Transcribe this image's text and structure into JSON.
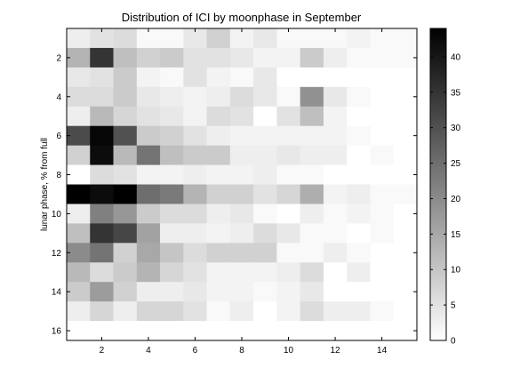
{
  "chart_data": {
    "type": "heatmap",
    "title": "Distribution of ICI by moonphase in September",
    "xlabel": "",
    "ylabel": "lunar phase, % from full",
    "x_range": [
      0.5,
      15.5
    ],
    "y_range": [
      0.5,
      16.5
    ],
    "x_ticks": [
      2,
      4,
      6,
      8,
      10,
      12,
      14
    ],
    "y_ticks": [
      2,
      4,
      6,
      8,
      10,
      12,
      14,
      16
    ],
    "colormap": "gray (reversed: 0 = white, 44 = black)",
    "colorbar": {
      "min": 0,
      "max": 44,
      "ticks": [
        0,
        5,
        10,
        15,
        20,
        25,
        30,
        35,
        40
      ]
    },
    "rows": [
      1,
      2,
      3,
      4,
      5,
      6,
      7,
      8,
      9,
      10,
      11,
      12,
      13,
      14,
      15,
      16
    ],
    "cols": [
      1,
      2,
      3,
      4,
      5,
      6,
      7,
      8,
      9,
      10,
      11,
      12,
      13,
      14,
      15
    ],
    "values": [
      [
        3,
        5,
        6,
        1,
        1,
        4,
        8,
        2,
        4,
        1,
        1,
        1,
        2,
        1,
        1
      ],
      [
        13,
        35,
        11,
        8,
        9,
        5,
        5,
        4,
        2,
        2,
        9,
        3,
        1,
        1,
        1
      ],
      [
        4,
        5,
        9,
        2,
        1,
        5,
        2,
        1,
        4,
        0,
        0,
        0,
        0,
        0,
        0
      ],
      [
        6,
        6,
        9,
        4,
        3,
        2,
        3,
        6,
        4,
        1,
        19,
        4,
        1,
        0,
        0
      ],
      [
        3,
        12,
        7,
        5,
        4,
        2,
        6,
        5,
        0,
        5,
        11,
        2,
        0,
        0,
        0
      ],
      [
        31,
        43,
        30,
        9,
        8,
        5,
        3,
        2,
        2,
        2,
        2,
        2,
        1,
        0,
        0
      ],
      [
        8,
        42,
        12,
        24,
        11,
        9,
        9,
        3,
        3,
        4,
        3,
        3,
        0,
        1,
        0
      ],
      [
        0,
        6,
        5,
        2,
        2,
        3,
        2,
        2,
        3,
        1,
        1,
        0,
        0,
        0,
        0
      ],
      [
        44,
        42,
        44,
        25,
        23,
        13,
        8,
        8,
        5,
        7,
        14,
        2,
        3,
        1,
        1
      ],
      [
        3,
        22,
        18,
        9,
        6,
        6,
        3,
        4,
        1,
        0,
        3,
        1,
        2,
        1,
        0
      ],
      [
        11,
        35,
        32,
        16,
        3,
        3,
        2,
        3,
        6,
        4,
        1,
        1,
        0,
        1,
        0
      ],
      [
        20,
        24,
        8,
        15,
        10,
        6,
        8,
        8,
        8,
        1,
        1,
        3,
        1,
        0,
        0
      ],
      [
        12,
        6,
        9,
        13,
        7,
        5,
        2,
        2,
        2,
        3,
        6,
        0,
        3,
        0,
        0
      ],
      [
        9,
        17,
        8,
        3,
        3,
        4,
        2,
        2,
        1,
        2,
        4,
        0,
        0,
        0,
        0
      ],
      [
        3,
        7,
        3,
        7,
        7,
        5,
        1,
        3,
        0,
        2,
        6,
        3,
        3,
        1,
        0
      ],
      [
        0,
        0,
        0,
        0,
        0,
        0,
        0,
        0,
        0,
        0,
        0,
        0,
        0,
        0,
        0
      ]
    ]
  }
}
